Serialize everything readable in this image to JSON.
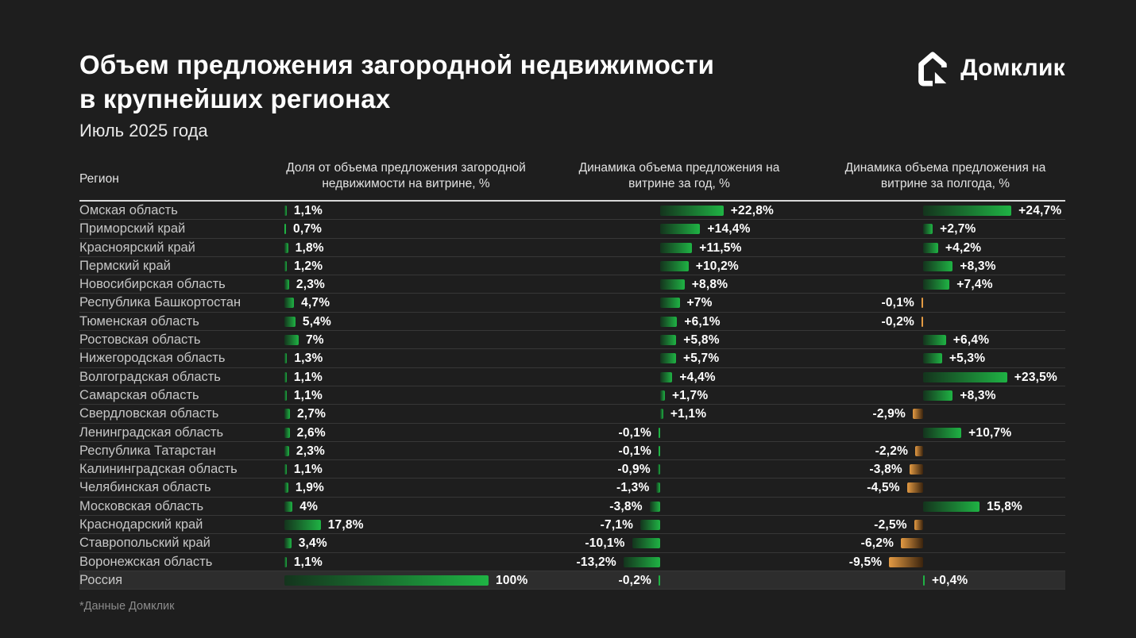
{
  "title_line1": "Объем предложения загородной недвижимости",
  "title_line2": "в крупнейших регионах",
  "subtitle": "Июль 2025 года",
  "brand": {
    "name": "Домклик"
  },
  "footnote": "*Данные Домклик",
  "colors": {
    "background": "#1E1E1E",
    "green_bright": "#1FB344",
    "green_dark": "#14341D",
    "orange_bright": "#E39A43",
    "orange_dark": "#3A230D",
    "row_highlight": "#2D2D2D"
  },
  "table": {
    "columns": [
      {
        "label": "Регион"
      },
      {
        "label": "Доля от объема предложения загородной недвижимости на витрине, %"
      },
      {
        "label": "Динамика объема предложения на витрине за год, %"
      },
      {
        "label": "Динамика объема предложения на витрине за полгода, %"
      }
    ],
    "rows": [
      {
        "region": "Омская область",
        "share": 1.1,
        "share_label": "1,1%",
        "year": 22.8,
        "year_label": "+22,8%",
        "half": 24.7,
        "half_label": "+24,7%",
        "highlight": false
      },
      {
        "region": "Приморский край",
        "share": 0.7,
        "share_label": "0,7%",
        "year": 14.4,
        "year_label": "+14,4%",
        "half": 2.7,
        "half_label": "+2,7%",
        "highlight": false
      },
      {
        "region": "Красноярский край",
        "share": 1.8,
        "share_label": "1,8%",
        "year": 11.5,
        "year_label": "+11,5%",
        "half": 4.2,
        "half_label": "+4,2%",
        "highlight": false
      },
      {
        "region": "Пермский край",
        "share": 1.2,
        "share_label": "1,2%",
        "year": 10.2,
        "year_label": "+10,2%",
        "half": 8.3,
        "half_label": "+8,3%",
        "highlight": false
      },
      {
        "region": "Новосибирская область",
        "share": 2.3,
        "share_label": "2,3%",
        "year": 8.8,
        "year_label": "+8,8%",
        "half": 7.4,
        "half_label": "+7,4%",
        "highlight": false
      },
      {
        "region": "Республика Башкортостан",
        "share": 4.7,
        "share_label": "4,7%",
        "year": 7,
        "year_label": "+7%",
        "half": -0.1,
        "half_label": "-0,1%",
        "highlight": false
      },
      {
        "region": "Тюменская область",
        "share": 5.4,
        "share_label": "5,4%",
        "year": 6.1,
        "year_label": "+6,1%",
        "half": -0.2,
        "half_label": "-0,2%",
        "highlight": false
      },
      {
        "region": "Ростовская область",
        "share": 7,
        "share_label": "7%",
        "year": 5.8,
        "year_label": "+5,8%",
        "half": 6.4,
        "half_label": "+6,4%",
        "highlight": false
      },
      {
        "region": "Нижегородская область",
        "share": 1.3,
        "share_label": "1,3%",
        "year": 5.7,
        "year_label": "+5,7%",
        "half": 5.3,
        "half_label": "+5,3%",
        "highlight": false
      },
      {
        "region": "Волгоградская область",
        "share": 1.1,
        "share_label": "1,1%",
        "year": 4.4,
        "year_label": "+4,4%",
        "half": 23.5,
        "half_label": "+23,5%",
        "highlight": false
      },
      {
        "region": "Самарская область",
        "share": 1.1,
        "share_label": "1,1%",
        "year": 1.7,
        "year_label": "+1,7%",
        "half": 8.3,
        "half_label": "+8,3%",
        "highlight": false
      },
      {
        "region": "Свердловская область",
        "share": 2.7,
        "share_label": "2,7%",
        "year": 1.1,
        "year_label": "+1,1%",
        "half": -2.9,
        "half_label": "-2,9%",
        "highlight": false
      },
      {
        "region": "Ленинградская область",
        "share": 2.6,
        "share_label": "2,6%",
        "year": -0.1,
        "year_label": "-0,1%",
        "half": 10.7,
        "half_label": "+10,7%",
        "highlight": false
      },
      {
        "region": "Республика Татарстан",
        "share": 2.3,
        "share_label": "2,3%",
        "year": -0.1,
        "year_label": "-0,1%",
        "half": -2.2,
        "half_label": "-2,2%",
        "highlight": false
      },
      {
        "region": "Калининградская область",
        "share": 1.1,
        "share_label": "1,1%",
        "year": -0.9,
        "year_label": "-0,9%",
        "half": -3.8,
        "half_label": "-3,8%",
        "highlight": false
      },
      {
        "region": "Челябинская область",
        "share": 1.9,
        "share_label": "1,9%",
        "year": -1.3,
        "year_label": "-1,3%",
        "half": -4.5,
        "half_label": "-4,5%",
        "highlight": false
      },
      {
        "region": "Московская область",
        "share": 4,
        "share_label": "4%",
        "year": -3.8,
        "year_label": "-3,8%",
        "half": 15.8,
        "half_label": "15,8%",
        "highlight": false
      },
      {
        "region": "Краснодарский край",
        "share": 17.8,
        "share_label": "17,8%",
        "year": -7.1,
        "year_label": "-7,1%",
        "half": -2.5,
        "half_label": "-2,5%",
        "highlight": false
      },
      {
        "region": "Ставропольский край",
        "share": 3.4,
        "share_label": "3,4%",
        "year": -10.1,
        "year_label": "-10,1%",
        "half": -6.2,
        "half_label": "-6,2%",
        "highlight": false
      },
      {
        "region": "Воронежская область",
        "share": 1.1,
        "share_label": "1,1%",
        "year": -13.2,
        "year_label": "-13,2%",
        "half": -9.5,
        "half_label": "-9,5%",
        "highlight": false
      },
      {
        "region": "Россия",
        "share": 100,
        "share_label": "100%",
        "year": -0.2,
        "year_label": "-0,2%",
        "half": 0.4,
        "half_label": "+0,4%",
        "highlight": true
      }
    ]
  },
  "chart_data": {
    "type": "bar",
    "title": "Объем предложения загородной недвижимости в крупнейших регионах",
    "subtitle": "Июль 2025 года",
    "orientation": "horizontal",
    "categories": [
      "Омская область",
      "Приморский край",
      "Красноярский край",
      "Пермский край",
      "Новосибирская область",
      "Республика Башкортостан",
      "Тюменская область",
      "Ростовская область",
      "Нижегородская область",
      "Волгоградская область",
      "Самарская область",
      "Свердловская область",
      "Ленинградская область",
      "Республика Татарстан",
      "Калининградская область",
      "Челябинская область",
      "Московская область",
      "Краснодарский край",
      "Ставропольский край",
      "Воронежская область",
      "Россия"
    ],
    "series": [
      {
        "name": "Доля от объема предложения загородной недвижимости на витрине, %",
        "values": [
          1.1,
          0.7,
          1.8,
          1.2,
          2.3,
          4.7,
          5.4,
          7,
          1.3,
          1.1,
          1.1,
          2.7,
          2.6,
          2.3,
          1.1,
          1.9,
          4,
          17.8,
          3.4,
          1.1,
          100
        ]
      },
      {
        "name": "Динамика объема предложения на витрине за год, %",
        "values": [
          22.8,
          14.4,
          11.5,
          10.2,
          8.8,
          7,
          6.1,
          5.8,
          5.7,
          4.4,
          1.7,
          1.1,
          -0.1,
          -0.1,
          -0.9,
          -1.3,
          -3.8,
          -7.1,
          -10.1,
          -13.2,
          -0.2
        ]
      },
      {
        "name": "Динамика объема предложения на витрине за полгода, %",
        "values": [
          24.7,
          2.7,
          4.2,
          8.3,
          7.4,
          -0.1,
          -0.2,
          6.4,
          5.3,
          23.5,
          8.3,
          -2.9,
          10.7,
          -2.2,
          -3.8,
          -4.5,
          15.8,
          -2.5,
          -6.2,
          -9.5,
          0.4
        ]
      }
    ],
    "legend_position": "none",
    "grid": false,
    "bar_colors": {
      "positive": "green gradient",
      "negative_year": "green gradient",
      "negative_half": "orange gradient"
    }
  }
}
